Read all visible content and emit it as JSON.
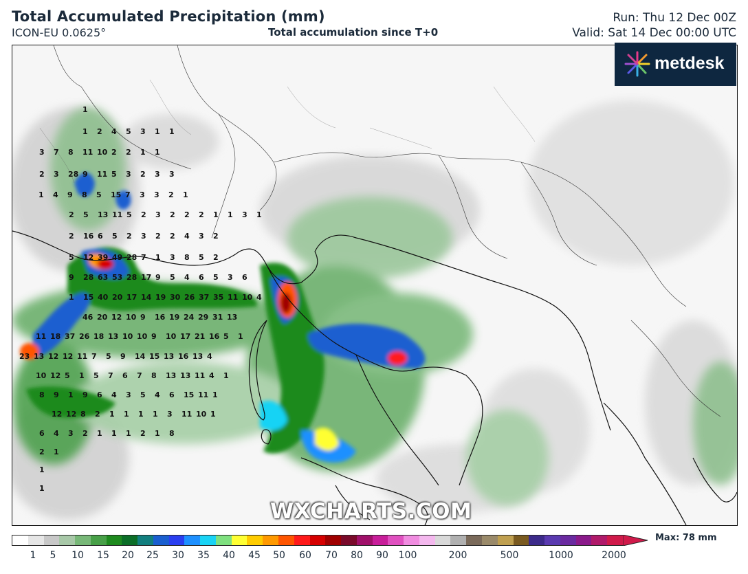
{
  "header": {
    "title": "Total Accumulated Precipitation (mm)",
    "model": "ICON-EU 0.0625°",
    "subtitle": "Total accumulation since T+0",
    "run": "Run: Thu 12 Dec 00Z",
    "valid": "Valid: Sat 14 Dec 00:00 UTC"
  },
  "logo": {
    "text": "metdesk",
    "icon": "sparkle-burst-icon"
  },
  "watermark": "WXCHARTS.COM",
  "legend": {
    "ticks": [
      "1",
      "5",
      "10",
      "15",
      "20",
      "25",
      "30",
      "35",
      "40",
      "45",
      "50",
      "60",
      "70",
      "80",
      "90",
      "100",
      "200",
      "500",
      "1000",
      "2000"
    ],
    "max_label": "Max: 78 mm",
    "colors": [
      "#ffffff",
      "#e6e6e6",
      "#c8c8c8",
      "#a8c8a8",
      "#78b878",
      "#48a048",
      "#1e8a1e",
      "#0c6e28",
      "#127f7f",
      "#1a5fd0",
      "#2a3ff0",
      "#1e90ff",
      "#19d3f5",
      "#7fe07f",
      "#ffff33",
      "#ffcc00",
      "#ff9900",
      "#ff5500",
      "#ff1a1a",
      "#d60000",
      "#a00000",
      "#7a0a2a",
      "#a0106a",
      "#c81e9a",
      "#e050c0",
      "#f08ce0",
      "#f4b8ee",
      "#d9d9d9",
      "#b0b0b0",
      "#7a6a5a",
      "#9a8a6a",
      "#c0a050",
      "#7a5a20",
      "#3c2a8a",
      "#5a3ab0",
      "#6a2aa0",
      "#8a1a8a",
      "#b01a6a",
      "#d01a4a"
    ]
  },
  "map_values": [
    [
      "1"
    ],
    [
      "1",
      "2",
      "4",
      "5",
      "3",
      "1",
      "1"
    ],
    [
      "3",
      "7",
      "8",
      "11",
      "10",
      "2",
      "2",
      "1",
      "1"
    ],
    [
      "2",
      "3",
      "28",
      "9",
      "11",
      "5",
      "3",
      "2",
      "3",
      "3"
    ],
    [
      "1",
      "4",
      "9",
      "8",
      "5",
      "15",
      "7",
      "3",
      "3",
      "2",
      "1"
    ],
    [
      "2",
      "5",
      "13",
      "11",
      "5",
      "2",
      "3",
      "2",
      "2",
      "2",
      "1",
      "1",
      "3",
      "1"
    ],
    [
      "2",
      "16",
      "6",
      "5",
      "2",
      "3",
      "2",
      "2",
      "4",
      "3",
      "2"
    ],
    [
      "5",
      "12",
      "39",
      "49",
      "28",
      "7",
      "1",
      "3",
      "8",
      "5",
      "2"
    ],
    [
      "9",
      "28",
      "63",
      "53",
      "28",
      "17",
      "9",
      "5",
      "4",
      "6",
      "5",
      "3",
      "6"
    ],
    [
      "1",
      "15",
      "40",
      "20",
      "17",
      "14",
      "19",
      "30",
      "26",
      "37",
      "35",
      "11",
      "10",
      "4"
    ],
    [
      "46",
      "20",
      "12",
      "10",
      "9",
      "16",
      "19",
      "24",
      "29",
      "31",
      "13"
    ],
    [
      "11",
      "18",
      "37",
      "26",
      "18",
      "13",
      "10",
      "10",
      "9",
      "10",
      "17",
      "21",
      "16",
      "5",
      "1"
    ],
    [
      "23",
      "13",
      "12",
      "12",
      "11",
      "7",
      "5",
      "9",
      "14",
      "15",
      "13",
      "16",
      "13",
      "4"
    ],
    [
      "10",
      "12",
      "5",
      "1",
      "5",
      "7",
      "6",
      "7",
      "8",
      "13",
      "13",
      "11",
      "4",
      "1"
    ],
    [
      "8",
      "9",
      "1",
      "9",
      "6",
      "4",
      "3",
      "5",
      "4",
      "6",
      "15",
      "11",
      "1"
    ],
    [
      "12",
      "12",
      "8",
      "2",
      "1",
      "1",
      "1",
      "1",
      "3",
      "11",
      "10",
      "1"
    ],
    [
      "6",
      "4",
      "3",
      "2",
      "1",
      "1",
      "1",
      "2",
      "1",
      "8"
    ],
    [
      "2",
      "1"
    ],
    [
      "1"
    ],
    [
      "1"
    ]
  ]
}
